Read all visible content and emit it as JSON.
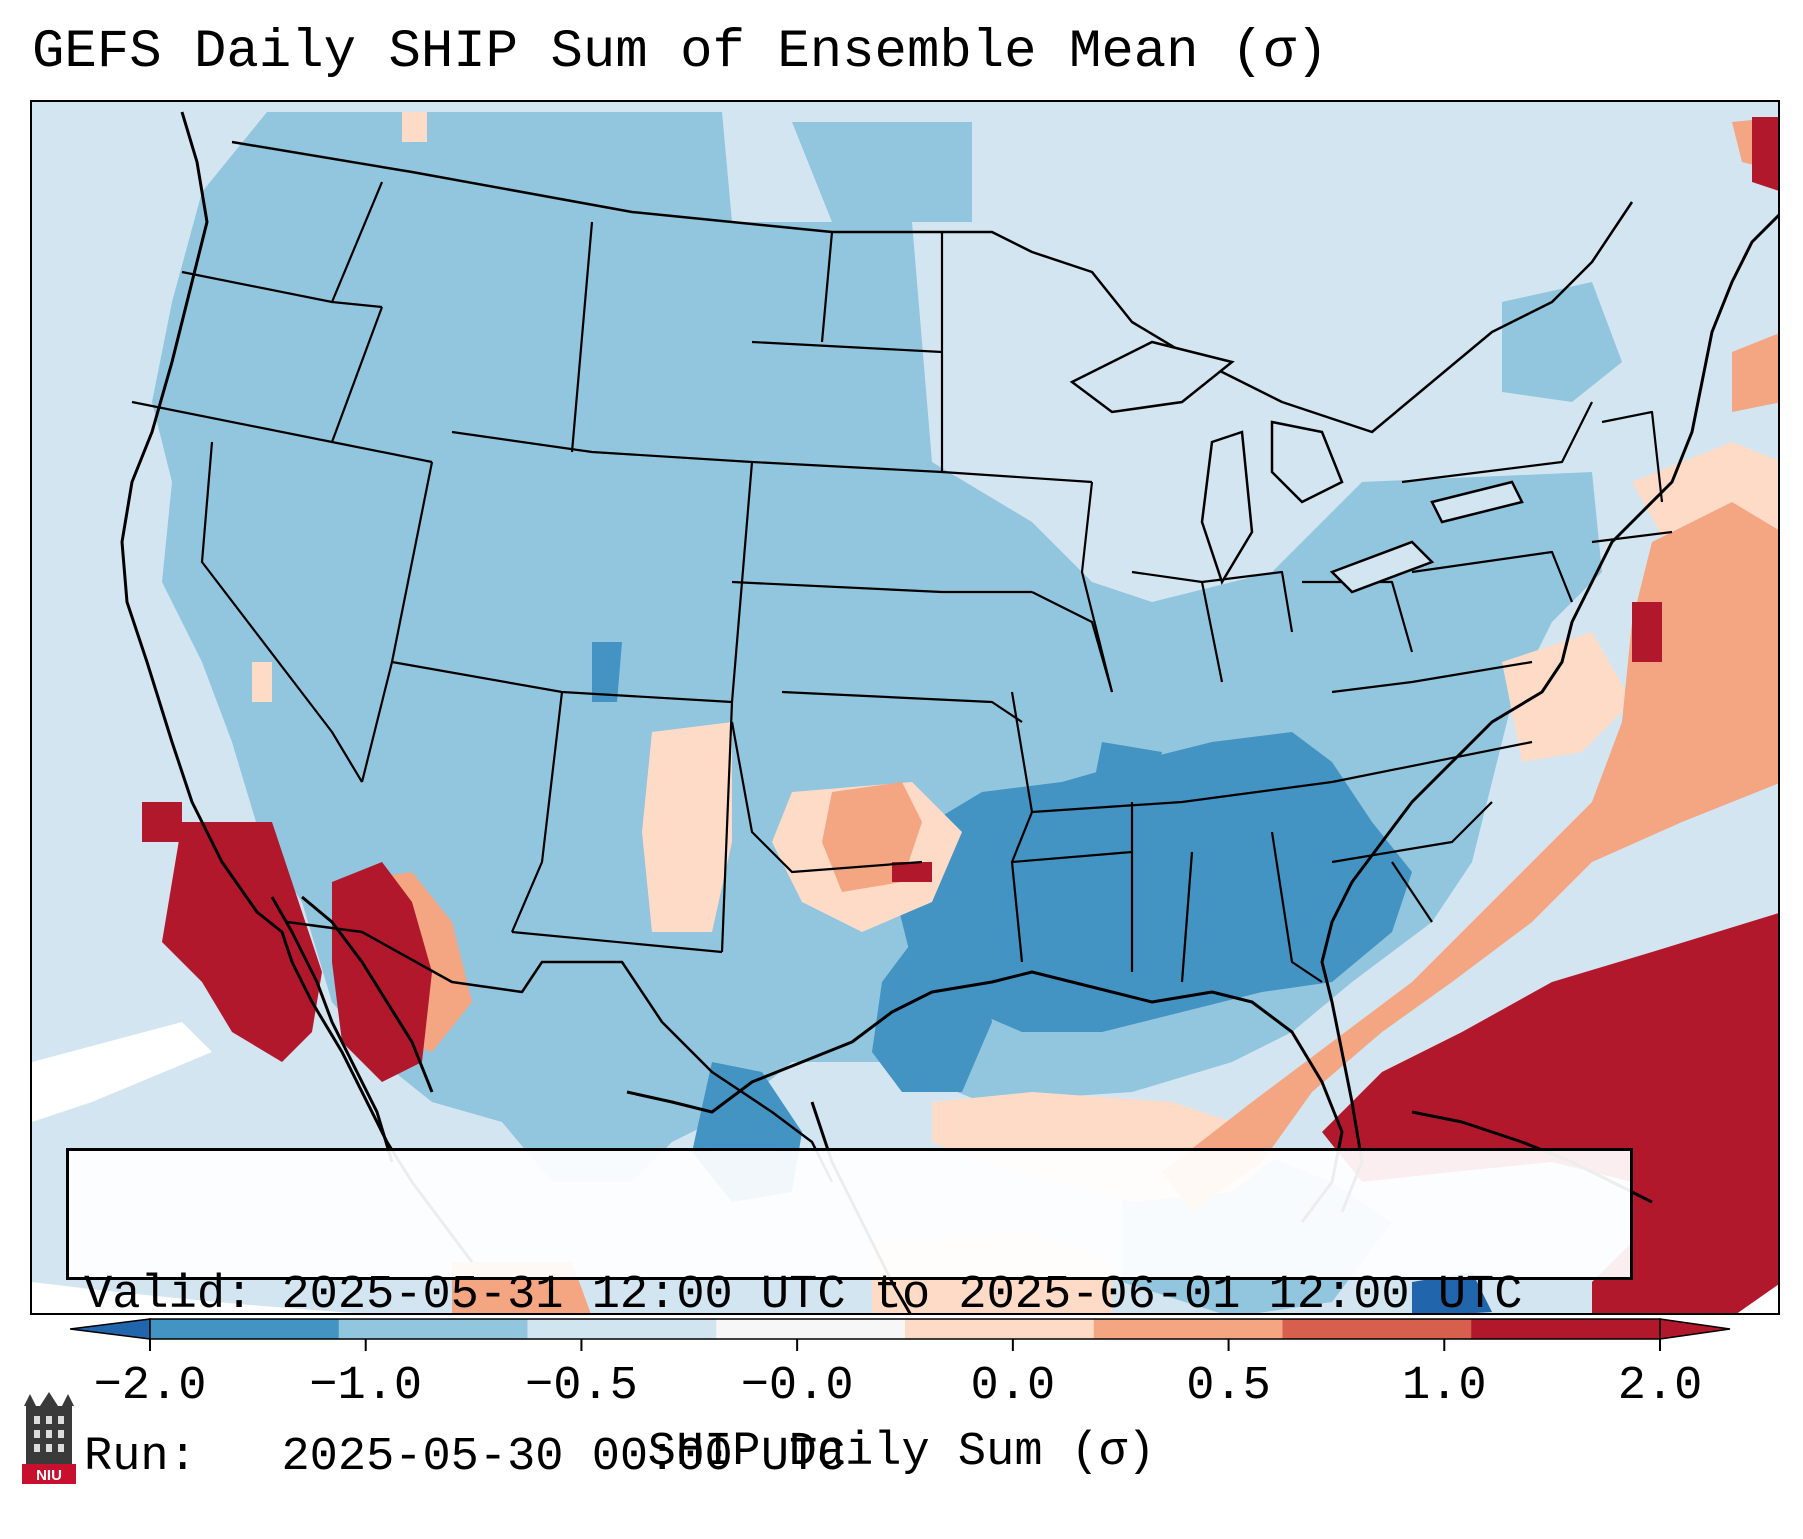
{
  "title": "GEFS Daily SHIP Sum of Ensemble Mean (σ)",
  "info_box": {
    "valid_label": "Valid:",
    "valid_value": "2025-05-31 12:00 UTC to 2025-06-01 12:00 UTC",
    "run_label": "Run:",
    "run_value": "2025-05-30 00:00 UTC"
  },
  "colorbar": {
    "label": "SHIP Daily Sum (σ)",
    "ticks": [
      "−2.0",
      "−1.0",
      "−0.5",
      "−0.0",
      "0.0",
      "0.5",
      "1.0",
      "2.0"
    ],
    "colors": [
      "#4393c3",
      "#92c5de",
      "#d1e5f0",
      "#f7f7f7",
      "#fddbc7",
      "#f4a582",
      "#d6604d",
      "#b2182b"
    ],
    "extend_low_color": "#2166ac",
    "extend_high_color": "#b2182b"
  },
  "logo": {
    "name": "niu-logo",
    "text": "NIU"
  },
  "map": {
    "projection": "Lambert Conformal (CONUS)",
    "background_color": "#d3e5f0",
    "boundaries": [
      "coastlines",
      "country borders",
      "state borders"
    ]
  }
}
